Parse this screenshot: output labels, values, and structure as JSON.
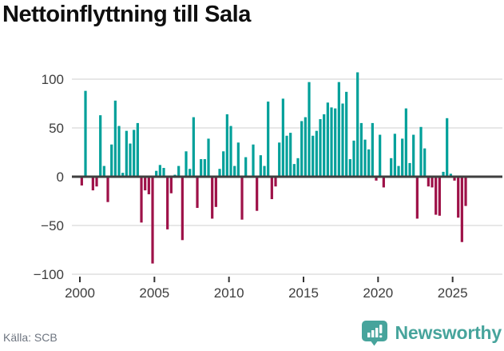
{
  "title": "Nettoinflyttning till Sala",
  "footer": {
    "source_label": "Källa: SCB",
    "brand": "Newsworthy"
  },
  "colors": {
    "positive_bar": "#00a09a",
    "negative_bar": "#9e1148",
    "gridline": "#e7e7e7",
    "zero_line": "#3f3f3f",
    "tick_mark": "#333333",
    "axis_text": "#3d3d3d",
    "title_text": "#0f0f0f",
    "source_text": "#6e7580",
    "brand_teal": "#47a49c"
  },
  "chart_data": {
    "type": "bar",
    "title": "Nettoinflyttning till Sala",
    "frequency": "quarterly",
    "x_start_year": 2000,
    "x_end_year": 2025,
    "ylim": [
      -100,
      110
    ],
    "grid": "horizontal",
    "legend": "none",
    "yticks": [
      {
        "value": 100,
        "label": "100"
      },
      {
        "value": 50,
        "label": "50"
      },
      {
        "value": 0,
        "label": "0"
      },
      {
        "value": -50,
        "label": "−50"
      },
      {
        "value": -100,
        "label": "−100"
      }
    ],
    "xticks": [
      {
        "year": 2000,
        "label": "2000"
      },
      {
        "year": 2005,
        "label": "2005"
      },
      {
        "year": 2010,
        "label": "2010"
      },
      {
        "year": 2015,
        "label": "2015"
      },
      {
        "year": 2020,
        "label": "2020"
      },
      {
        "year": 2025,
        "label": "2025"
      }
    ],
    "values_by_year": [
      {
        "year": 2000,
        "q": [
          -9,
          88,
          0,
          -14
        ]
      },
      {
        "year": 2001,
        "q": [
          -10,
          63,
          11,
          -26
        ]
      },
      {
        "year": 2002,
        "q": [
          33,
          78,
          52,
          4
        ]
      },
      {
        "year": 2003,
        "q": [
          47,
          34,
          48,
          55
        ]
      },
      {
        "year": 2004,
        "q": [
          -47,
          -14,
          -18,
          -89
        ]
      },
      {
        "year": 2005,
        "q": [
          6,
          12,
          9,
          -54
        ]
      },
      {
        "year": 2006,
        "q": [
          -17,
          2,
          11,
          -65
        ]
      },
      {
        "year": 2007,
        "q": [
          26,
          8,
          61,
          -32
        ]
      },
      {
        "year": 2008,
        "q": [
          18,
          18,
          39,
          -43
        ]
      },
      {
        "year": 2009,
        "q": [
          -31,
          8,
          26,
          64
        ]
      },
      {
        "year": 2010,
        "q": [
          52,
          11,
          35,
          -44
        ]
      },
      {
        "year": 2011,
        "q": [
          20,
          0,
          33,
          -35
        ]
      },
      {
        "year": 2012,
        "q": [
          22,
          11,
          77,
          -23
        ]
      },
      {
        "year": 2013,
        "q": [
          -10,
          35,
          80,
          42
        ]
      },
      {
        "year": 2014,
        "q": [
          45,
          13,
          19,
          57
        ]
      },
      {
        "year": 2015,
        "q": [
          61,
          97,
          42,
          47
        ]
      },
      {
        "year": 2016,
        "q": [
          59,
          64,
          76,
          71
        ]
      },
      {
        "year": 2017,
        "q": [
          70,
          97,
          75,
          87
        ]
      },
      {
        "year": 2018,
        "q": [
          18,
          37,
          107,
          55
        ]
      },
      {
        "year": 2019,
        "q": [
          38,
          28,
          55,
          -4
        ]
      },
      {
        "year": 2020,
        "q": [
          43,
          -11,
          0,
          19
        ]
      },
      {
        "year": 2021,
        "q": [
          44,
          11,
          39,
          70
        ]
      },
      {
        "year": 2022,
        "q": [
          14,
          43,
          -43,
          51
        ]
      },
      {
        "year": 2023,
        "q": [
          29,
          -10,
          -11,
          -39
        ]
      },
      {
        "year": 2024,
        "q": [
          -40,
          5,
          60,
          3
        ]
      },
      {
        "year": 2025,
        "q": [
          -4,
          -42,
          -67,
          -30
        ]
      }
    ]
  }
}
